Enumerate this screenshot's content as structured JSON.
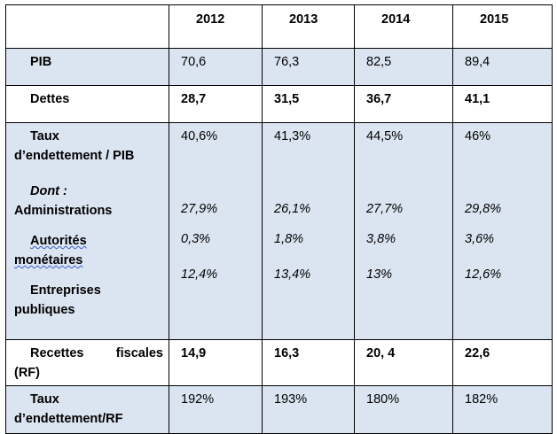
{
  "table": {
    "years": [
      "2012",
      "2013",
      "2014",
      "2015"
    ],
    "pib": {
      "label": "PIB",
      "values": [
        "70,6",
        "76,3",
        "82,5",
        "89,4"
      ]
    },
    "dettes": {
      "label": "Dettes",
      "values": [
        "28,7",
        "31,5",
        "36,7",
        "41,1"
      ]
    },
    "taux_pib": {
      "label_line1": "Taux",
      "label_line2": "d’endettement / PIB",
      "values": [
        "40,6%",
        "41,3%",
        "44,5%",
        "46%"
      ],
      "dont_label": "Dont :",
      "administrations": {
        "label": "Administrations",
        "values": [
          "27,9%",
          "26,1%",
          "27,7%",
          "29,8%"
        ]
      },
      "autorites": {
        "label_line1": "Autorités",
        "label_line2": "monétaires",
        "values": [
          "0,3%",
          "1,8%",
          "3,8%",
          "3,6%"
        ]
      },
      "entreprises": {
        "label_line1": "Entreprises",
        "label_line2": "publiques",
        "values": [
          "12,4%",
          "13,4%",
          "13%",
          "12,6%"
        ]
      }
    },
    "recettes": {
      "label_word1": "Recettes",
      "label_word2": "fiscales",
      "label_line2": "(RF)",
      "values": [
        "14,9",
        "16,3",
        "20, 4",
        "22,6"
      ]
    },
    "taux_rf": {
      "label_line1": "Taux",
      "label_line2": "d’endettement/RF",
      "values": [
        "192%",
        "193%",
        "180%",
        "182%"
      ]
    }
  }
}
